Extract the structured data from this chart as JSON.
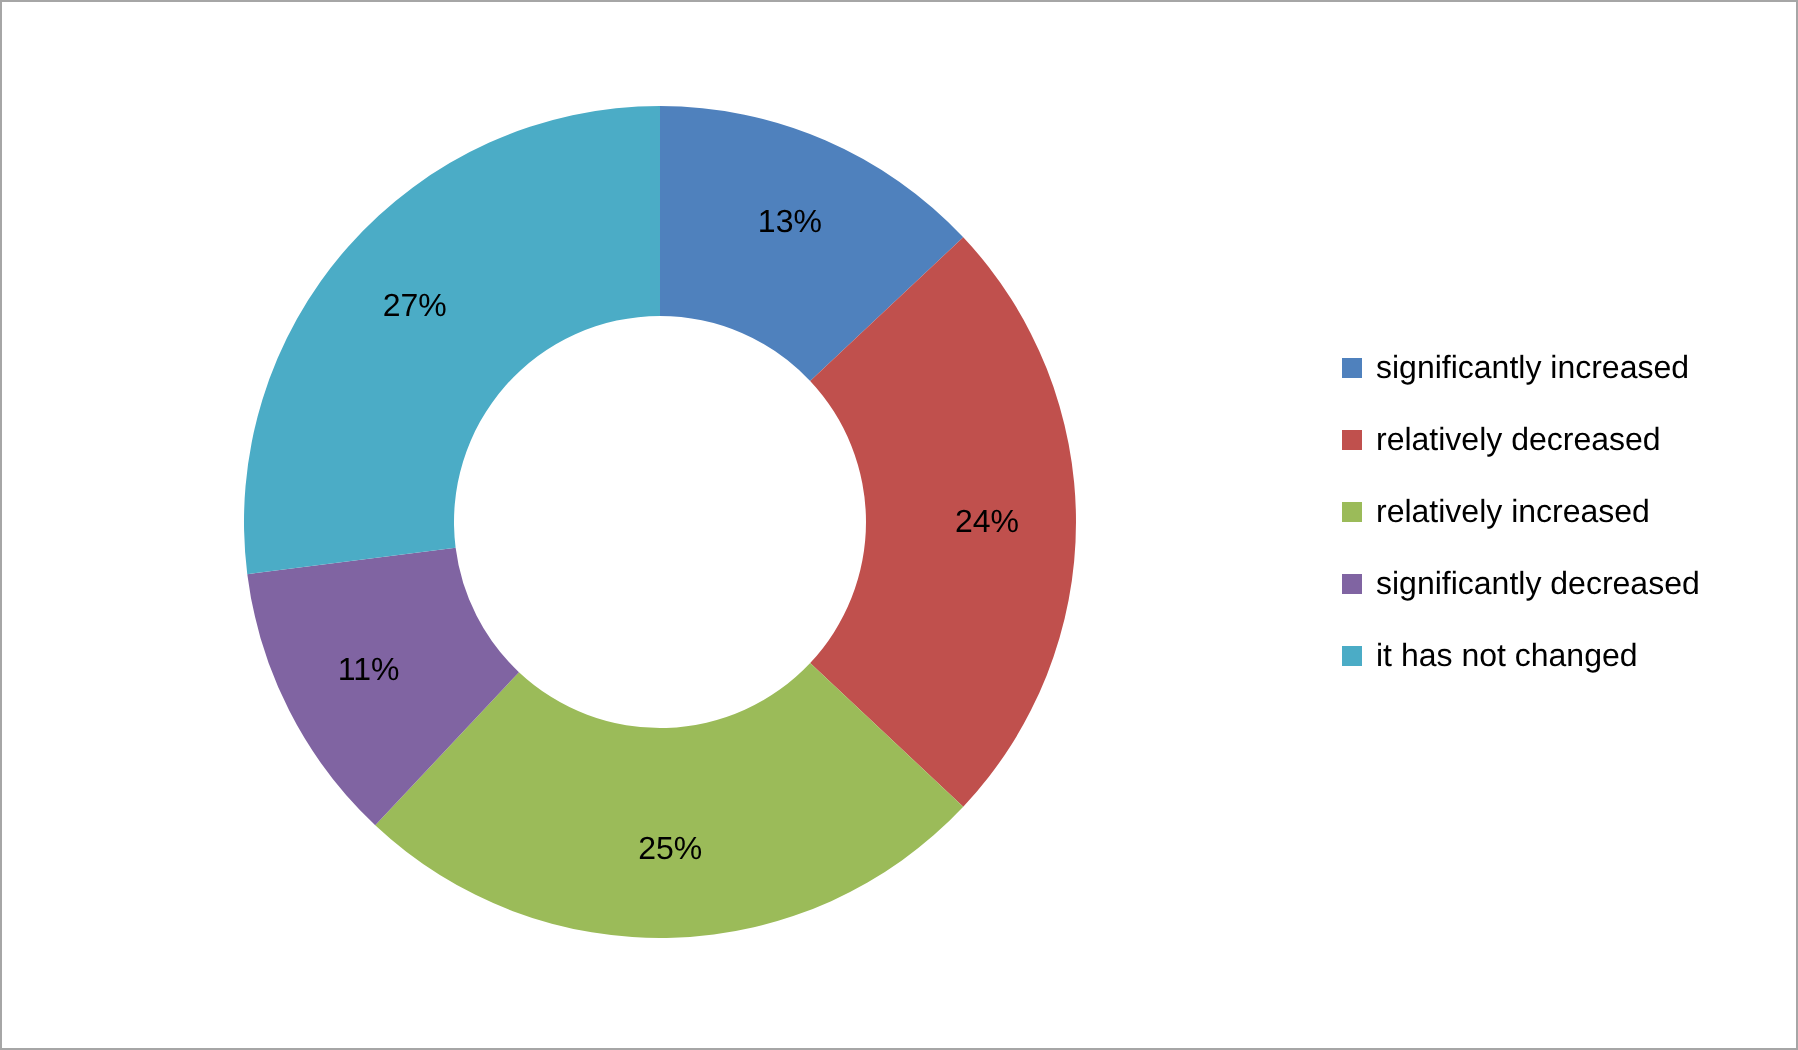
{
  "chart_data": {
    "type": "donut",
    "categories": [
      "significantly increased",
      "relatively decreased",
      "relatively increased",
      "significantly decreased",
      "it has not changed"
    ],
    "values": [
      13,
      24,
      25,
      11,
      27
    ],
    "value_labels": [
      "13%",
      "24%",
      "25%",
      "11%",
      "27%"
    ],
    "colors": [
      "#4f81bd",
      "#c0504d",
      "#9bbb59",
      "#8064a2",
      "#4bacc6"
    ],
    "legend": "right"
  }
}
